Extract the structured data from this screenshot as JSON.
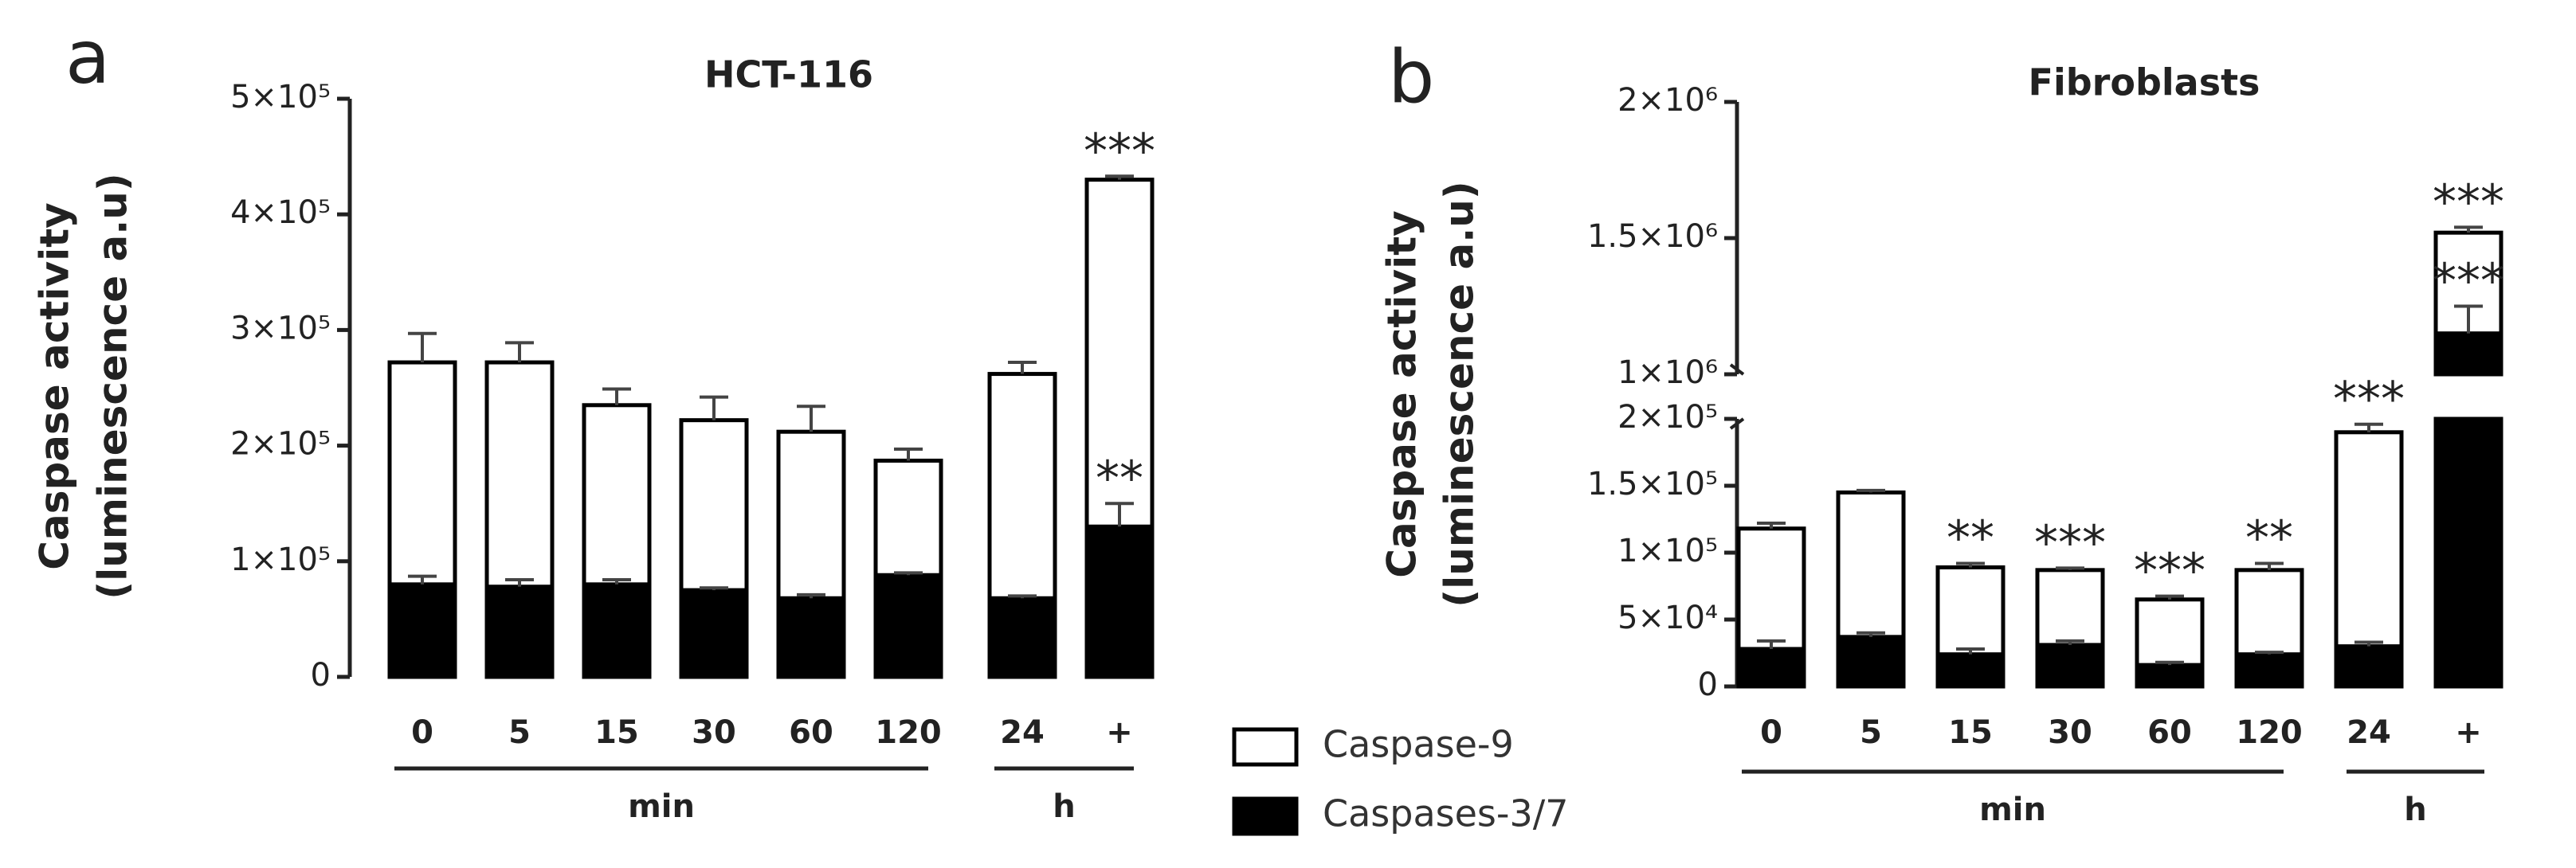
{
  "chart_data": [
    {
      "type": "bar",
      "panel": "a",
      "title": "HCT-116",
      "y_label": [
        "Caspase activity",
        "(luminescence a.u)"
      ],
      "categories": [
        "0",
        "5",
        "15",
        "30",
        "60",
        "120",
        "24",
        "+"
      ],
      "groups": [
        {
          "label": "min",
          "span": 6
        },
        {
          "label": "h",
          "span": 2
        }
      ],
      "ylim": [
        0,
        500000
      ],
      "yticks": [
        0,
        {
          "value": 100000,
          "label": "1×10⁵"
        },
        {
          "value": 200000,
          "label": "2×10⁵"
        },
        {
          "value": 300000,
          "label": "3×10⁵"
        },
        {
          "value": 400000,
          "label": "4×10⁵"
        },
        {
          "value": 500000,
          "label": "5×10⁵"
        }
      ],
      "series": [
        {
          "color": "#ffffff",
          "values": [
            272000,
            272000,
            235000,
            222000,
            212000,
            187000,
            262000,
            430000
          ],
          "errors": [
            25000,
            17000,
            14000,
            20000,
            22000,
            10000,
            10000,
            3000
          ],
          "annotations": [
            null,
            null,
            null,
            null,
            null,
            null,
            null,
            "***"
          ]
        },
        {
          "color": "#000000",
          "values": [
            80000,
            78000,
            80000,
            75000,
            68000,
            88000,
            68000,
            130000
          ],
          "errors": [
            7000,
            6000,
            4000,
            2000,
            3000,
            2000,
            2000,
            20000
          ],
          "annotations": [
            null,
            null,
            null,
            null,
            null,
            null,
            null,
            "**"
          ]
        }
      ]
    },
    {
      "type": "bar",
      "panel": "b",
      "title": "Fibroblasts",
      "y_label": [
        "Caspase activity",
        "(luminescence a.u)"
      ],
      "categories": [
        "0",
        "5",
        "15",
        "30",
        "60",
        "120",
        "24",
        "+"
      ],
      "groups": [
        {
          "label": "min",
          "span": 6
        },
        {
          "label": "h",
          "span": 2
        }
      ],
      "ylim": [
        0,
        2000000
      ],
      "axis_break": [
        200000,
        1000000
      ],
      "yticks": [
        0,
        {
          "value": 50000,
          "label": "5×10⁴"
        },
        {
          "value": 100000,
          "label": "1×10⁵"
        },
        {
          "value": 150000,
          "label": "1.5×10⁵"
        },
        {
          "value": 200000,
          "label": "2×10⁵"
        },
        {
          "value": 1000000,
          "label": "1×10⁶"
        },
        {
          "value": 1500000,
          "label": "1.5×10⁶"
        },
        {
          "value": 2000000,
          "label": "2×10⁶"
        }
      ],
      "series": [
        {
          "name": "Caspase-9",
          "color": "#ffffff",
          "values": [
            118000,
            145000,
            89000,
            87000,
            65000,
            87000,
            190000,
            1520000
          ],
          "errors": [
            4000,
            1500,
            3000,
            1500,
            2500,
            5000,
            6000,
            20000
          ],
          "annotations": [
            null,
            null,
            "**",
            "***",
            "***",
            "**",
            "***",
            "***"
          ]
        },
        {
          "name": "Caspases-3/7",
          "color": "#000000",
          "values": [
            28000,
            37000,
            24000,
            31000,
            16000,
            24000,
            30000,
            1150000
          ],
          "errors": [
            6000,
            3000,
            4000,
            3000,
            2000,
            1500,
            3000,
            100000
          ],
          "annotations": [
            null,
            null,
            null,
            null,
            null,
            null,
            null,
            "***"
          ]
        }
      ]
    }
  ]
}
